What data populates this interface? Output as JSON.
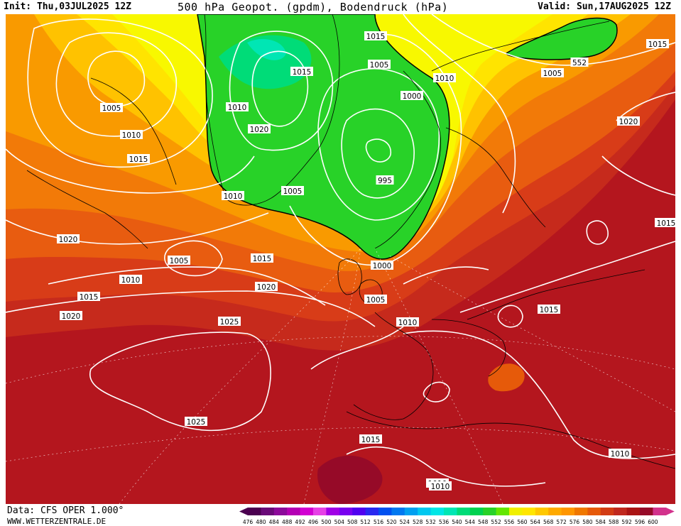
{
  "header": {
    "init": "Init: Thu,03JUL2025 12Z",
    "title": "500 hPa Geopot. (gpdm), Bodendruck (hPa)",
    "valid": "Valid: Sun,17AUG2025 12Z"
  },
  "footer": {
    "data_source": "Data: CFS OPER 1.000°",
    "website": "WWW.WETTERZENTRALE.DE"
  },
  "legend": {
    "values": [
      "476",
      "480",
      "484",
      "488",
      "492",
      "496",
      "500",
      "504",
      "508",
      "512",
      "516",
      "520",
      "524",
      "528",
      "532",
      "536",
      "540",
      "544",
      "548",
      "552",
      "556",
      "560",
      "564",
      "568",
      "572",
      "576",
      "580",
      "584",
      "588",
      "592",
      "596",
      "600"
    ],
    "colors": [
      "#4b0050",
      "#6a0a78",
      "#8c0a9a",
      "#b400b4",
      "#d200d2",
      "#e640e6",
      "#a000e6",
      "#7800f0",
      "#5000f0",
      "#2828f0",
      "#0050f0",
      "#0078f0",
      "#00a0f0",
      "#00c8f0",
      "#00e6e6",
      "#00e6b4",
      "#00dc78",
      "#00d250",
      "#28d228",
      "#64e600",
      "#f0f000",
      "#ffe600",
      "#ffc800",
      "#ffaa00",
      "#ff9600",
      "#f07800",
      "#e65a0a",
      "#d23c14",
      "#c0281e",
      "#aa1414",
      "#960a28",
      "#d2328c"
    ]
  },
  "pressure_labels": [
    {
      "text": "1015"
    },
    {
      "text": "1005"
    },
    {
      "text": "1015"
    },
    {
      "text": "1010"
    },
    {
      "text": "1015"
    },
    {
      "text": "552"
    },
    {
      "text": "1005"
    },
    {
      "text": "1020"
    },
    {
      "text": "1005"
    },
    {
      "text": "1010"
    },
    {
      "text": "1010"
    },
    {
      "text": "1000"
    },
    {
      "text": "1020"
    },
    {
      "text": "995"
    },
    {
      "text": "1015"
    },
    {
      "text": "1010"
    },
    {
      "text": "1005"
    },
    {
      "text": "1020"
    },
    {
      "text": "1010"
    },
    {
      "text": "1005"
    },
    {
      "text": "1015"
    },
    {
      "text": "1000"
    },
    {
      "text": "1015"
    },
    {
      "text": "1020"
    },
    {
      "text": "1010"
    },
    {
      "text": "1005"
    },
    {
      "text": "1015"
    },
    {
      "text": "1020"
    },
    {
      "text": "1025"
    },
    {
      "text": "1010"
    },
    {
      "text": "1015"
    },
    {
      "text": "1025"
    },
    {
      "text": "1015"
    },
    {
      "text": "1010"
    },
    {
      "text": "1010"
    }
  ]
}
